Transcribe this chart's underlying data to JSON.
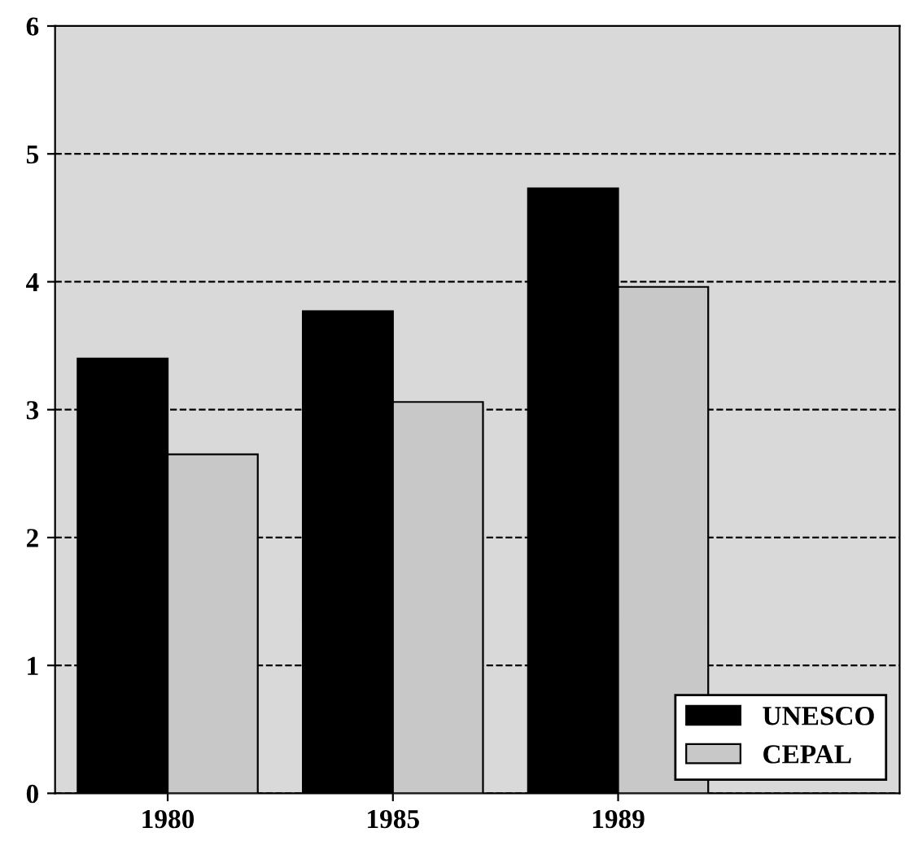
{
  "chart_data": {
    "type": "bar",
    "categories": [
      "1980",
      "1985",
      "1989"
    ],
    "series": [
      {
        "name": "UNESCO",
        "color": "#000000",
        "values": [
          3.4,
          3.77,
          4.73
        ]
      },
      {
        "name": "CEPAL",
        "color": "#c8c8c8",
        "values": [
          2.65,
          3.06,
          3.96
        ]
      }
    ],
    "ylim": [
      0,
      6
    ],
    "yticks": [
      0,
      1,
      2,
      3,
      4,
      5,
      6
    ],
    "grid": "y",
    "legend": "bottom right"
  }
}
